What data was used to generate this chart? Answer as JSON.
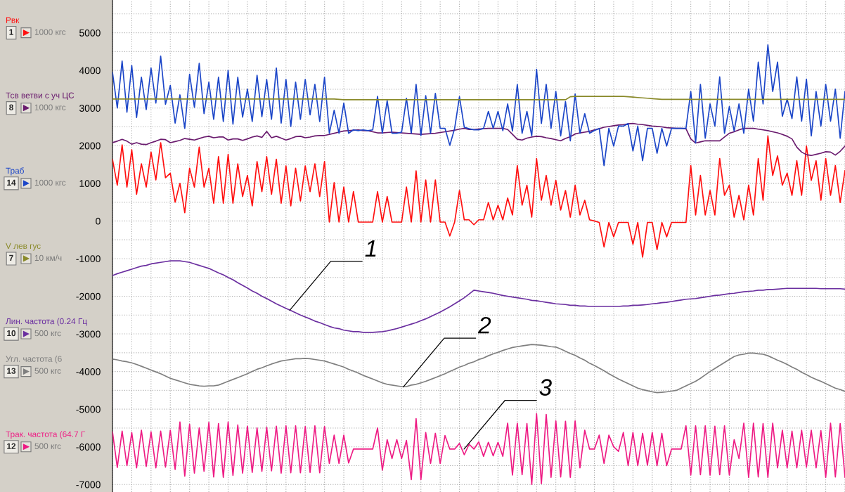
{
  "chart_data": {
    "type": "line",
    "categories": [
      null,
      null,
      null,
      null,
      null,
      null,
      null,
      null,
      null,
      null,
      null,
      null,
      null,
      null,
      null,
      null,
      null,
      null,
      null,
      null,
      null,
      null,
      null,
      null,
      null,
      null,
      null,
      null,
      null,
      null,
      null,
      null,
      null,
      null,
      null,
      null,
      null,
      null,
      null,
      null,
      null,
      null,
      null,
      null,
      null,
      null,
      null,
      null,
      null,
      null,
      null,
      null,
      null,
      null,
      null,
      null,
      null,
      null,
      null,
      null,
      null,
      null,
      null,
      null,
      null,
      null,
      null,
      null,
      null,
      null,
      null,
      null,
      null,
      null,
      null,
      null,
      null,
      null,
      null,
      null,
      null,
      null,
      null,
      null,
      null,
      null,
      null,
      null,
      null,
      null,
      null,
      null,
      null,
      null,
      null,
      null,
      null,
      null,
      null,
      null,
      null,
      null,
      null,
      null,
      null,
      null,
      null,
      null,
      null,
      null,
      null,
      null,
      null,
      null,
      null,
      null,
      null,
      null,
      null,
      null,
      null,
      null,
      null,
      null,
      null,
      null,
      null,
      null,
      null,
      null,
      null,
      null,
      null,
      null,
      null,
      null,
      null,
      null,
      null,
      null,
      null,
      null,
      null,
      null,
      null,
      null,
      null,
      null,
      null,
      null,
      null,
      null,
      null
    ],
    "series": [
      {
        "name": "Рвк",
        "color": "#ff1010",
        "values": [
          1640,
          950,
          2020,
          900,
          1890,
          710,
          1520,
          900,
          1830,
          1090,
          2080,
          1150,
          1270,
          500,
          1000,
          220,
          1400,
          900,
          1960,
          900,
          1400,
          470,
          1710,
          470,
          1770,
          470,
          1520,
          650,
          1210,
          400,
          1580,
          780,
          1710,
          710,
          1640,
          470,
          1460,
          400,
          1400,
          530,
          1460,
          780,
          1520,
          650,
          1580,
          -30,
          1020,
          -30,
          900,
          -30,
          780,
          -30,
          -30,
          -30,
          -30,
          780,
          -30,
          650,
          -30,
          -30,
          -30,
          900,
          -30,
          1330,
          -30,
          1090,
          -30,
          1090,
          -30,
          -30,
          -400,
          -30,
          810,
          30,
          30,
          -100,
          30,
          30,
          490,
          30,
          420,
          30,
          610,
          160,
          1470,
          420,
          950,
          100,
          1660,
          550,
          1210,
          420,
          1080,
          290,
          810,
          100,
          950,
          160,
          550,
          30,
          0,
          -40,
          -690,
          -40,
          -420,
          -40,
          -40,
          -40,
          -620,
          -40,
          -960,
          -40,
          -40,
          -760,
          -40,
          -420,
          -40,
          -40,
          -40,
          -40,
          1470,
          160,
          1210,
          160,
          810,
          160,
          1660,
          680,
          950,
          100,
          680,
          30,
          950,
          160,
          1660,
          550,
          2260,
          1210,
          1730,
          950,
          1270,
          680,
          1600,
          680,
          1990,
          1080,
          1600,
          550,
          1660,
          680,
          1470,
          490,
          1340
        ]
      },
      {
        "name": "Тсв ветви с уч ЦС",
        "color": "#6a1b6e",
        "values": [
          2080,
          2120,
          2170,
          2120,
          2040,
          2080,
          2040,
          2030,
          2080,
          2120,
          2170,
          2160,
          2080,
          2110,
          2140,
          2190,
          2170,
          2150,
          2190,
          2230,
          2250,
          2210,
          2230,
          2230,
          2150,
          2180,
          2180,
          2140,
          2180,
          2230,
          2260,
          2220,
          2380,
          2210,
          2250,
          2200,
          2150,
          2190,
          2240,
          2250,
          2210,
          2230,
          2260,
          2270,
          2270,
          2300,
          2330,
          2360,
          2390,
          2400,
          2410,
          2420,
          2400,
          2400,
          2370,
          2340,
          2340,
          2350,
          2360,
          2350,
          2340,
          2330,
          2320,
          2310,
          2300,
          2310,
          2320,
          2330,
          2350,
          2370,
          2390,
          2410,
          2440,
          2460,
          2430,
          2430,
          2440,
          2450,
          2460,
          2460,
          2460,
          2460,
          2430,
          2300,
          2170,
          2150,
          2200,
          2230,
          2250,
          2240,
          2210,
          2190,
          2160,
          2130,
          2190,
          2240,
          2310,
          2340,
          2360,
          2380,
          2420,
          2450,
          2490,
          2510,
          2530,
          2550,
          2560,
          2580,
          2590,
          2570,
          2560,
          2540,
          2520,
          2510,
          2500,
          2480,
          2470,
          2460,
          2460,
          2450,
          2180,
          2070,
          2100,
          2130,
          2130,
          2130,
          2130,
          2230,
          2330,
          2370,
          2420,
          2460,
          2460,
          2460,
          2440,
          2420,
          2400,
          2370,
          2340,
          2300,
          2250,
          2180,
          1960,
          1830,
          1760,
          1740,
          1770,
          1800,
          1840,
          1830,
          1750,
          1850,
          1990
        ]
      },
      {
        "name": "Траб",
        "color": "#1c46c8",
        "values": [
          3950,
          3000,
          4250,
          2890,
          4130,
          2750,
          3820,
          2960,
          4060,
          3130,
          4380,
          3100,
          3600,
          2600,
          3350,
          2460,
          3900,
          3020,
          4190,
          2850,
          3690,
          2700,
          3820,
          2640,
          4000,
          2570,
          3820,
          2760,
          3500,
          2640,
          3870,
          2770,
          3760,
          2700,
          4060,
          2600,
          3760,
          2510,
          3690,
          2700,
          3760,
          2820,
          3630,
          2640,
          3820,
          2330,
          2940,
          2330,
          3130,
          2330,
          2420,
          2400,
          2420,
          2400,
          2420,
          3310,
          2330,
          3200,
          2330,
          2330,
          2360,
          3260,
          2330,
          3630,
          2270,
          3330,
          2330,
          3390,
          2460,
          2460,
          2010,
          2460,
          3300,
          2490,
          2450,
          2420,
          2420,
          2460,
          2910,
          2460,
          2910,
          2400,
          3110,
          2390,
          3630,
          2330,
          2910,
          2260,
          4030,
          2590,
          3630,
          2460,
          3440,
          2260,
          3170,
          2130,
          3370,
          2330,
          2850,
          2330,
          2400,
          2460,
          1470,
          2460,
          1990,
          2520,
          2520,
          2590,
          1860,
          2520,
          1600,
          2460,
          2460,
          1800,
          2460,
          1990,
          2460,
          2460,
          2460,
          2460,
          3440,
          2070,
          3630,
          2200,
          3110,
          2520,
          3830,
          2330,
          3040,
          2390,
          3110,
          2330,
          3500,
          2650,
          4220,
          3110,
          4680,
          3440,
          4220,
          2780,
          3240,
          2720,
          3830,
          2650,
          3770,
          2260,
          3440,
          2520,
          3630,
          2650,
          3500,
          2200,
          3440
        ]
      },
      {
        "name": "V лев гус",
        "color": "#8a8a2a",
        "values": [
          3240,
          3240,
          3240,
          3240,
          3240,
          3240,
          3240,
          3240,
          3240,
          3240,
          3240,
          3240,
          3240,
          3240,
          3240,
          3240,
          3240,
          3240,
          3240,
          3240,
          3240,
          3240,
          3240,
          3240,
          3240,
          3240,
          3240,
          3240,
          3240,
          3240,
          3240,
          3240,
          3240,
          3240,
          3240,
          3240,
          3240,
          3240,
          3240,
          3240,
          3240,
          3240,
          3240,
          3240,
          3240,
          3240,
          3240,
          3230,
          3220,
          3220,
          3220,
          3220,
          3220,
          3220,
          3220,
          3220,
          3220,
          3220,
          3220,
          3220,
          3220,
          3220,
          3220,
          3220,
          3220,
          3220,
          3220,
          3220,
          3220,
          3220,
          3220,
          3220,
          3220,
          3220,
          3220,
          3220,
          3220,
          3220,
          3220,
          3220,
          3220,
          3220,
          3220,
          3220,
          3220,
          3220,
          3220,
          3220,
          3220,
          3220,
          3220,
          3220,
          3220,
          3220,
          3220,
          3300,
          3310,
          3310,
          3310,
          3310,
          3310,
          3310,
          3310,
          3310,
          3310,
          3310,
          3310,
          3300,
          3290,
          3280,
          3270,
          3260,
          3250,
          3240,
          3230,
          3230,
          3230,
          3230,
          3230,
          3230,
          3230,
          3230,
          3230,
          3230,
          3230,
          3230,
          3230,
          3230,
          3230,
          3230,
          3230,
          3230,
          3230,
          3230,
          3230,
          3230,
          3230,
          3230,
          3230,
          3230,
          3230,
          3230,
          3230,
          3230,
          3230,
          3230,
          3230,
          3230,
          3230,
          3230,
          3230,
          3230,
          3230
        ]
      },
      {
        "name": "Лин. частота (0.24 Гц",
        "color": "#6b2fa0",
        "values": [
          -1450,
          -1400,
          -1360,
          -1320,
          -1280,
          -1240,
          -1200,
          -1180,
          -1140,
          -1120,
          -1100,
          -1080,
          -1060,
          -1060,
          -1060,
          -1080,
          -1100,
          -1140,
          -1180,
          -1220,
          -1260,
          -1320,
          -1380,
          -1430,
          -1500,
          -1560,
          -1640,
          -1710,
          -1780,
          -1860,
          -1920,
          -2000,
          -2060,
          -2130,
          -2200,
          -2260,
          -2320,
          -2380,
          -2440,
          -2500,
          -2550,
          -2600,
          -2660,
          -2700,
          -2750,
          -2800,
          -2840,
          -2860,
          -2900,
          -2920,
          -2940,
          -2940,
          -2960,
          -2960,
          -2960,
          -2950,
          -2940,
          -2920,
          -2890,
          -2860,
          -2820,
          -2780,
          -2740,
          -2700,
          -2650,
          -2600,
          -2540,
          -2480,
          -2420,
          -2350,
          -2280,
          -2200,
          -2120,
          -2040,
          -1940,
          -1840,
          -1860,
          -1880,
          -1900,
          -1920,
          -1950,
          -1980,
          -2000,
          -2020,
          -2040,
          -2060,
          -2080,
          -2110,
          -2120,
          -2140,
          -2160,
          -2180,
          -2200,
          -2210,
          -2220,
          -2240,
          -2240,
          -2260,
          -2260,
          -2270,
          -2270,
          -2270,
          -2270,
          -2270,
          -2270,
          -2270,
          -2260,
          -2260,
          -2240,
          -2240,
          -2230,
          -2220,
          -2200,
          -2190,
          -2170,
          -2160,
          -2140,
          -2120,
          -2100,
          -2080,
          -2070,
          -2060,
          -2040,
          -2020,
          -2000,
          -1980,
          -1970,
          -1950,
          -1930,
          -1920,
          -1900,
          -1880,
          -1870,
          -1860,
          -1840,
          -1840,
          -1820,
          -1820,
          -1810,
          -1800,
          -1790,
          -1790,
          -1790,
          -1790,
          -1790,
          -1790,
          -1790,
          -1800,
          -1800,
          -1800,
          -1800,
          -1800,
          -1810
        ]
      },
      {
        "name": "Угл. частота (6",
        "color": "#7f7f7f",
        "values": [
          -3670,
          -3690,
          -3720,
          -3740,
          -3770,
          -3810,
          -3860,
          -3910,
          -3960,
          -4010,
          -4060,
          -4120,
          -4180,
          -4220,
          -4260,
          -4300,
          -4340,
          -4360,
          -4380,
          -4390,
          -4380,
          -4380,
          -4360,
          -4310,
          -4260,
          -4210,
          -4160,
          -4110,
          -4060,
          -4000,
          -3940,
          -3900,
          -3850,
          -3800,
          -3760,
          -3720,
          -3700,
          -3680,
          -3660,
          -3660,
          -3650,
          -3660,
          -3680,
          -3700,
          -3720,
          -3760,
          -3800,
          -3840,
          -3880,
          -3940,
          -3990,
          -4040,
          -4100,
          -4150,
          -4200,
          -4250,
          -4300,
          -4340,
          -4360,
          -4380,
          -4400,
          -4400,
          -4360,
          -4340,
          -4300,
          -4260,
          -4210,
          -4160,
          -4110,
          -4060,
          -4000,
          -3940,
          -3880,
          -3840,
          -3780,
          -3740,
          -3680,
          -3640,
          -3580,
          -3530,
          -3490,
          -3440,
          -3400,
          -3360,
          -3340,
          -3320,
          -3300,
          -3280,
          -3290,
          -3300,
          -3320,
          -3340,
          -3350,
          -3400,
          -3460,
          -3520,
          -3570,
          -3640,
          -3700,
          -3780,
          -3840,
          -3910,
          -3980,
          -4060,
          -4130,
          -4200,
          -4260,
          -4320,
          -4380,
          -4440,
          -4480,
          -4510,
          -4540,
          -4560,
          -4550,
          -4540,
          -4520,
          -4500,
          -4440,
          -4380,
          -4320,
          -4260,
          -4180,
          -4090,
          -4000,
          -3920,
          -3840,
          -3760,
          -3680,
          -3600,
          -3560,
          -3540,
          -3510,
          -3510,
          -3530,
          -3540,
          -3580,
          -3640,
          -3700,
          -3750,
          -3810,
          -3880,
          -3940,
          -4020,
          -4080,
          -4150,
          -4210,
          -4260,
          -4320,
          -4380,
          -4440,
          -4480,
          -4530
        ]
      },
      {
        "name": "Трак. частота (64.7 Г",
        "color": "#ee1c84",
        "values": [
          -5600,
          -6550,
          -5580,
          -6500,
          -5620,
          -6560,
          -5560,
          -6520,
          -5600,
          -6560,
          -5580,
          -6540,
          -5560,
          -6600,
          -5340,
          -6780,
          -5400,
          -6700,
          -5500,
          -6650,
          -5350,
          -6800,
          -5380,
          -6810,
          -5340,
          -6760,
          -5420,
          -6700,
          -5450,
          -6680,
          -5500,
          -6650,
          -5480,
          -6640,
          -5450,
          -6700,
          -5440,
          -6690,
          -5440,
          -6690,
          -5460,
          -6680,
          -5440,
          -6690,
          -5460,
          -6440,
          -5690,
          -6440,
          -5690,
          -6430,
          -6060,
          -6060,
          -6060,
          -6060,
          -6060,
          -5500,
          -6620,
          -5810,
          -6310,
          -5810,
          -6310,
          -5830,
          -6870,
          -5250,
          -6870,
          -5620,
          -6440,
          -5640,
          -6440,
          -5700,
          -6060,
          -6060,
          -5910,
          -6210,
          -5930,
          -6060,
          -5870,
          -6250,
          -5880,
          -6240,
          -5880,
          -6250,
          -5370,
          -6750,
          -5370,
          -6740,
          -5380,
          -7000,
          -5120,
          -6980,
          -5140,
          -6810,
          -5310,
          -6800,
          -5320,
          -6810,
          -5310,
          -6560,
          -5560,
          -6060,
          -6060,
          -5690,
          -6440,
          -5690,
          -6000,
          -6120,
          -5620,
          -6500,
          -5620,
          -6500,
          -5640,
          -6490,
          -5620,
          -6500,
          -5640,
          -6500,
          -6060,
          -6060,
          -6060,
          -5440,
          -6750,
          -5440,
          -6740,
          -5440,
          -6750,
          -5450,
          -6740,
          -5440,
          -6750,
          -5810,
          -6310,
          -5370,
          -6810,
          -5370,
          -6800,
          -5380,
          -6810,
          -5370,
          -6560,
          -5560,
          -6560,
          -5580,
          -6560,
          -5560,
          -6540,
          -5560,
          -6560,
          -5570,
          -6810,
          -5370,
          -6800,
          -5380,
          -6810
        ]
      }
    ],
    "ylim": [
      -7200,
      5870
    ],
    "yticks": [
      -7000,
      {
        "value": -6500,
        "label": null
      },
      -6000,
      {
        "value": -5500,
        "label": null
      },
      -5000,
      {
        "value": -4500,
        "label": null
      },
      -4000,
      {
        "value": -3500,
        "label": null
      },
      -3000,
      {
        "value": -2500,
        "label": null
      },
      -2000,
      {
        "value": -1500,
        "label": null
      },
      -1000,
      {
        "value": -500,
        "label": null
      },
      0,
      {
        "value": 500,
        "label": null
      },
      1000,
      {
        "value": 1500,
        "label": null
      },
      2000,
      {
        "value": 2500,
        "label": null
      },
      3000,
      {
        "value": 3500,
        "label": null
      },
      4000,
      {
        "value": 4500,
        "label": null
      },
      5000,
      {
        "value": 5500,
        "label": null
      }
    ],
    "grid": true,
    "tick_labels": "y",
    "annotations": [
      "1",
      "1000 кгс",
      "8",
      "1000 кгс",
      "14",
      "1000 кгс",
      "7",
      "10 км/ч",
      "10",
      "500 кгс",
      "13",
      "500 кгс",
      "12",
      "500 кгс",
      "1",
      "2",
      "3"
    ]
  }
}
